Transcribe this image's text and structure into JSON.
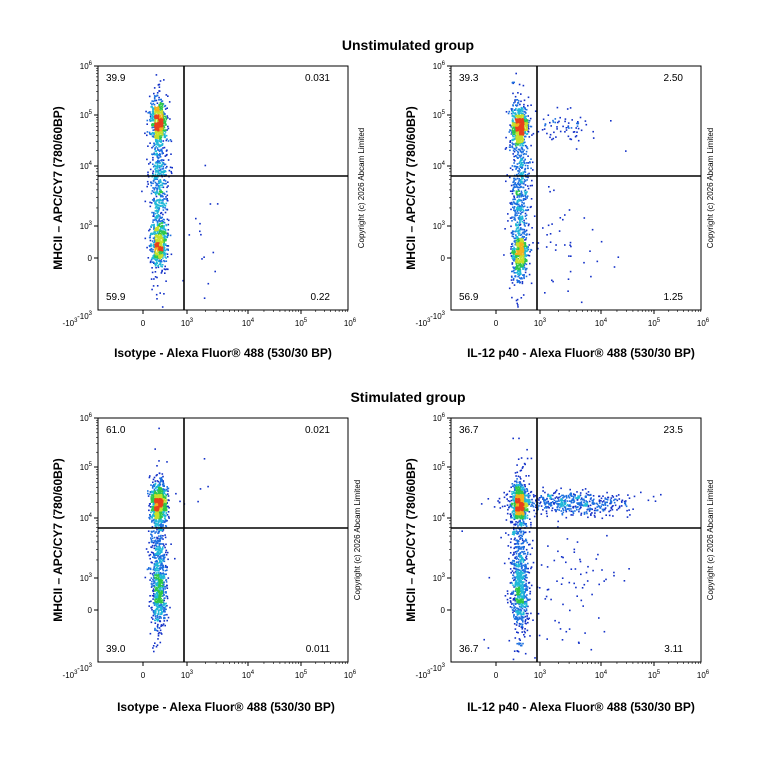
{
  "groups": [
    {
      "title": "Unstimulated group"
    },
    {
      "title": "Stimulated group"
    }
  ],
  "copyright": "Copyright (c) 2026 Abcam Limited",
  "tick_labels": {
    "x": [
      {
        "base": "-10",
        "exp": "3"
      },
      {
        "base": "0",
        "exp": ""
      },
      {
        "base": "10",
        "exp": "3"
      },
      {
        "base": "10",
        "exp": "4"
      },
      {
        "base": "10",
        "exp": "5"
      },
      {
        "base": "10",
        "exp": "6"
      }
    ],
    "y": [
      {
        "base": "-10",
        "exp": "3"
      },
      {
        "base": "0",
        "exp": ""
      },
      {
        "base": "10",
        "exp": "3"
      },
      {
        "base": "10",
        "exp": "4"
      },
      {
        "base": "10",
        "exp": "5"
      },
      {
        "base": "10",
        "exp": "6"
      }
    ]
  },
  "chart_data": [
    {
      "type": "scatter",
      "group": "Unstimulated group",
      "xlabel": "Isotype - Alexa Fluor® 488 (530/30 BP)",
      "ylabel": "MHCII – APC/CY7 (780/60BP)",
      "x_scale": "biexponential",
      "y_scale": "biexponential",
      "xlim": [
        -1000,
        1000000
      ],
      "ylim": [
        -1000,
        1000000
      ],
      "quadrants": {
        "top_left": "39.9",
        "top_right": "0.031",
        "bottom_left": "59.9",
        "bottom_right": "0.22"
      },
      "populations": [
        {
          "x_center": 0,
          "y_center": 40000,
          "note": "dense MHCII-high cluster"
        },
        {
          "x_center": 0,
          "y_center": 0,
          "note": "MHCII-low cluster"
        }
      ]
    },
    {
      "type": "scatter",
      "group": "Unstimulated group",
      "xlabel": "IL-12 p40 - Alexa Fluor® 488 (530/30 BP)",
      "ylabel": "MHCII – APC/CY7 (780/60BP)",
      "x_scale": "biexponential",
      "y_scale": "biexponential",
      "xlim": [
        -1000,
        1000000
      ],
      "ylim": [
        -1000,
        1000000
      ],
      "quadrants": {
        "top_left": "39.3",
        "top_right": "2.50",
        "bottom_left": "56.9",
        "bottom_right": "1.25"
      },
      "populations": [
        {
          "x_center": 0,
          "y_center": 40000,
          "note": "dense MHCII-high cluster"
        },
        {
          "x_center": 0,
          "y_center": 0,
          "note": "MHCII-low cluster"
        }
      ]
    },
    {
      "type": "scatter",
      "group": "Stimulated group",
      "xlabel": "Isotype - Alexa Fluor® 488 (530/30 BP)",
      "ylabel": "MHCII – APC/CY7 (780/60BP)",
      "x_scale": "biexponential",
      "y_scale": "biexponential",
      "xlim": [
        -1000,
        1000000
      ],
      "ylim": [
        -1000,
        1000000
      ],
      "quadrants": {
        "top_left": "61.0",
        "top_right": "0.021",
        "bottom_left": "39.0",
        "bottom_right": "0.011"
      },
      "populations": [
        {
          "x_center": 0,
          "y_center": 20000,
          "note": "dense MHCII-high cluster"
        },
        {
          "x_center": 0,
          "y_center": 0,
          "note": "MHCII-low cluster"
        }
      ]
    },
    {
      "type": "scatter",
      "group": "Stimulated group",
      "xlabel": "IL-12 p40 - Alexa Fluor® 488 (530/30 BP)",
      "ylabel": "MHCII – APC/CY7 (780/60BP)",
      "x_scale": "biexponential",
      "y_scale": "biexponential",
      "xlim": [
        -1000,
        1000000
      ],
      "ylim": [
        -1000,
        1000000
      ],
      "quadrants": {
        "top_left": "36.7",
        "top_right": "23.5",
        "bottom_left": "36.7",
        "bottom_right": "3.11"
      },
      "populations": [
        {
          "x_center": 0,
          "y_center": 20000,
          "note": "dense MHCII-high cluster"
        },
        {
          "x_center": 0,
          "y_center": 0,
          "note": "MHCII-low cluster"
        },
        {
          "x_center": 5000,
          "y_center": 20000,
          "note": "IL-12 p40 positive MHCII-high tail"
        }
      ]
    }
  ]
}
